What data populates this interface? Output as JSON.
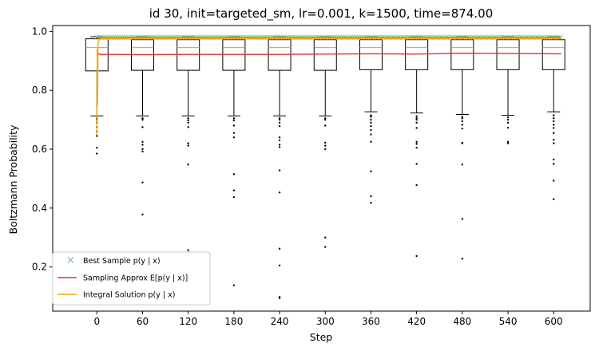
{
  "chart_data": {
    "type": "box",
    "title": "id 30, init=targeted_sm, lr=0.001, k=1500, time=874.00",
    "xlabel": "Step",
    "ylabel": "Boltzmann Probability",
    "xlim": [
      -58,
      648
    ],
    "ylim": [
      0.05,
      1.02
    ],
    "x_ticks": [
      0,
      60,
      120,
      180,
      240,
      300,
      360,
      420,
      480,
      540,
      600
    ],
    "y_ticks": [
      0.2,
      0.4,
      0.6,
      0.8,
      1.0
    ],
    "y_tick_labels": [
      "0.2",
      "0.4",
      "0.6",
      "0.8",
      "1.0"
    ],
    "grid": false,
    "legend_position": "lower-left",
    "boxes": [
      {
        "step": 0,
        "whisker_low": 0.713,
        "q1": 0.866,
        "median": 0.945,
        "q3": 0.975,
        "whisker_high": 0.982,
        "outliers": [
          0.705,
          0.7,
          0.69,
          0.675,
          0.66,
          0.645,
          0.605,
          0.585
        ]
      },
      {
        "step": 60,
        "whisker_low": 0.713,
        "q1": 0.868,
        "median": 0.945,
        "q3": 0.972,
        "whisker_high": 0.982,
        "outliers": [
          0.705,
          0.7,
          0.675,
          0.625,
          0.615,
          0.6,
          0.592,
          0.487,
          0.378
        ]
      },
      {
        "step": 120,
        "whisker_low": 0.713,
        "q1": 0.868,
        "median": 0.945,
        "q3": 0.972,
        "whisker_high": 0.982,
        "outliers": [
          0.705,
          0.698,
          0.69,
          0.675,
          0.62,
          0.612,
          0.548,
          0.257
        ]
      },
      {
        "step": 180,
        "whisker_low": 0.713,
        "q1": 0.868,
        "median": 0.945,
        "q3": 0.972,
        "whisker_high": 0.982,
        "outliers": [
          0.705,
          0.698,
          0.68,
          0.655,
          0.64,
          0.515,
          0.46,
          0.437,
          0.138
        ]
      },
      {
        "step": 240,
        "whisker_low": 0.713,
        "q1": 0.868,
        "median": 0.945,
        "q3": 0.972,
        "whisker_high": 0.982,
        "outliers": [
          0.705,
          0.7,
          0.69,
          0.678,
          0.64,
          0.63,
          0.615,
          0.607,
          0.528,
          0.453,
          0.262,
          0.205,
          0.098,
          0.094
        ]
      },
      {
        "step": 300,
        "whisker_low": 0.713,
        "q1": 0.868,
        "median": 0.945,
        "q3": 0.972,
        "whisker_high": 0.982,
        "outliers": [
          0.705,
          0.7,
          0.68,
          0.622,
          0.612,
          0.6,
          0.3,
          0.268
        ]
      },
      {
        "step": 360,
        "whisker_low": 0.727,
        "q1": 0.87,
        "median": 0.945,
        "q3": 0.972,
        "whisker_high": 0.982,
        "outliers": [
          0.715,
          0.71,
          0.7,
          0.69,
          0.678,
          0.665,
          0.65,
          0.625,
          0.525,
          0.44,
          0.418
        ]
      },
      {
        "step": 420,
        "whisker_low": 0.723,
        "q1": 0.87,
        "median": 0.945,
        "q3": 0.972,
        "whisker_high": 0.982,
        "outliers": [
          0.712,
          0.705,
          0.7,
          0.69,
          0.672,
          0.625,
          0.618,
          0.605,
          0.55,
          0.478,
          0.237
        ]
      },
      {
        "step": 480,
        "whisker_low": 0.718,
        "q1": 0.87,
        "median": 0.945,
        "q3": 0.972,
        "whisker_high": 0.982,
        "outliers": [
          0.71,
          0.705,
          0.695,
          0.683,
          0.67,
          0.622,
          0.62,
          0.548,
          0.363,
          0.228
        ]
      },
      {
        "step": 540,
        "whisker_low": 0.715,
        "q1": 0.87,
        "median": 0.945,
        "q3": 0.972,
        "whisker_high": 0.982,
        "outliers": [
          0.708,
          0.7,
          0.69,
          0.673,
          0.625,
          0.62
        ]
      },
      {
        "step": 600,
        "whisker_low": 0.727,
        "q1": 0.87,
        "median": 0.945,
        "q3": 0.972,
        "whisker_high": 0.982,
        "outliers": [
          0.715,
          0.705,
          0.695,
          0.683,
          0.672,
          0.655,
          0.632,
          0.62,
          0.565,
          0.55,
          0.493,
          0.43
        ]
      }
    ],
    "series": [
      {
        "name": "Best Sample $p(y \\mid x)$",
        "label": "Best Sample p(y | x)",
        "marker": "x",
        "color": "#7fbf7f",
        "value": 0.98,
        "x_range": [
          0,
          610
        ]
      },
      {
        "name": "Sampling Approx $E[p(y \\mid x)]$",
        "label": "Sampling Approx E[p(y | x)]",
        "line": "solid",
        "color": "#e8312a",
        "x": [
          0,
          2,
          4,
          6,
          8,
          10,
          20,
          60,
          120,
          180,
          240,
          300,
          360,
          420,
          480,
          540,
          600,
          610
        ],
        "values": [
          0.935,
          0.925,
          0.922,
          0.922,
          0.921,
          0.922,
          0.922,
          0.921,
          0.922,
          0.922,
          0.922,
          0.923,
          0.924,
          0.923,
          0.926,
          0.925,
          0.924,
          0.924
        ]
      },
      {
        "name": "Integral Solution $p(y \\mid x)$",
        "label": "Integral Solution p(y | x)",
        "line": "solid",
        "color": "#ffa500",
        "x": [
          0,
          0.5,
          1,
          1.5,
          2,
          2.5,
          3,
          4,
          6,
          8,
          10,
          20,
          60,
          120,
          180,
          240,
          300,
          360,
          420,
          480,
          540,
          600,
          610
        ],
        "values": [
          0.648,
          0.94,
          0.75,
          0.955,
          0.965,
          0.968,
          0.972,
          0.974,
          0.975,
          0.976,
          0.976,
          0.976,
          0.976,
          0.976,
          0.976,
          0.976,
          0.976,
          0.976,
          0.976,
          0.976,
          0.976,
          0.976,
          0.976
        ]
      }
    ]
  },
  "title": "id 30, init=targeted_sm, lr=0.001, k=1500, time=874.00",
  "xlabel": "Step",
  "ylabel": "Boltzmann Probability",
  "legend": [
    {
      "label": "Best Sample p(y | x)",
      "color": "#7fbf7f"
    },
    {
      "label": "Sampling Approx E[p(y | x)]",
      "color": "#e8312a"
    },
    {
      "label": "Integral Solution p(y | x)",
      "color": "#ffa500"
    }
  ]
}
